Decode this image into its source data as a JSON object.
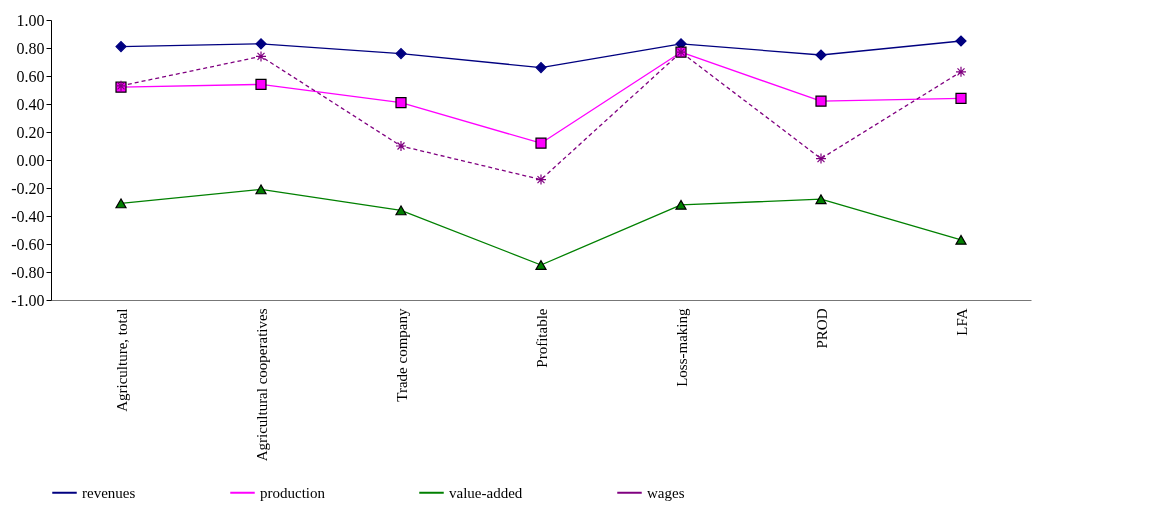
{
  "chart_data": {
    "type": "line",
    "categories": [
      "Agriculture, total",
      "Agricultural cooperatives",
      "Trade company",
      "Profitable",
      "Loss-making",
      "PROD",
      "LFA"
    ],
    "series": [
      {
        "name": "revenues",
        "color": "#000080",
        "marker": "diamond",
        "line_style": "solid",
        "values": [
          0.81,
          0.83,
          0.76,
          0.66,
          0.83,
          0.75,
          0.85
        ]
      },
      {
        "name": "production",
        "color": "#ff00ff",
        "marker": "square",
        "line_style": "solid",
        "values": [
          0.52,
          0.54,
          0.41,
          0.12,
          0.77,
          0.42,
          0.44
        ]
      },
      {
        "name": "value-added",
        "color": "#008000",
        "marker": "triangle",
        "line_style": "solid",
        "values": [
          -0.31,
          -0.21,
          -0.36,
          -0.75,
          -0.32,
          -0.28,
          -0.57
        ]
      },
      {
        "name": "wages",
        "color": "#800080",
        "marker": "cross",
        "line_style": "dashed",
        "values": [
          0.53,
          0.74,
          0.1,
          -0.14,
          0.77,
          0.01,
          0.63
        ]
      }
    ],
    "ylim": [
      -1.0,
      1.0
    ],
    "yticks": [
      {
        "value": -1.0,
        "label": "-1.00"
      },
      {
        "value": -0.8,
        "label": "-0.80"
      },
      {
        "value": -0.6,
        "label": "-0.60"
      },
      {
        "value": -0.4,
        "label": "-0.40"
      },
      {
        "value": -0.2,
        "label": "-0.20"
      },
      {
        "value": 0.0,
        "label": "0.00"
      },
      {
        "value": 0.2,
        "label": "0.20"
      },
      {
        "value": 0.4,
        "label": "0.40"
      },
      {
        "value": 0.6,
        "label": "0.60"
      },
      {
        "value": 0.8,
        "label": "0.80"
      },
      {
        "value": 1.0,
        "label": "1.00"
      }
    ],
    "grid": false,
    "legend": "bottom"
  }
}
